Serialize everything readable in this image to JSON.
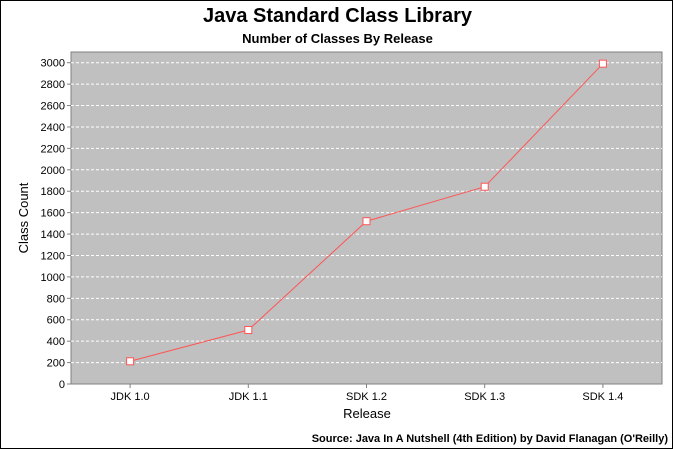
{
  "chart_data": {
    "type": "line",
    "title": "Java Standard Class Library",
    "subtitle": "Number of Classes By Release",
    "xlabel": "Release",
    "ylabel": "Class Count",
    "categories": [
      "JDK 1.0",
      "JDK 1.1",
      "SDK 1.2",
      "SDK 1.3",
      "SDK 1.4"
    ],
    "series": [
      {
        "values": [
          212,
          504,
          1520,
          1842,
          2991
        ]
      }
    ],
    "ylim": [
      0,
      3100
    ],
    "yticks": [
      0,
      200,
      400,
      600,
      800,
      1000,
      1200,
      1400,
      1600,
      1800,
      2000,
      2200,
      2400,
      2600,
      2800,
      3000
    ],
    "grid": true,
    "legend": "none",
    "source": "Source: Java In A Nutshell (4th Edition) by David Flanagan (O'Reilly)",
    "colors": {
      "plot_background": "#c0c0c0",
      "gridline": "#ffffff",
      "line": "#ff5555",
      "marker_fill": "#ffffff"
    }
  }
}
